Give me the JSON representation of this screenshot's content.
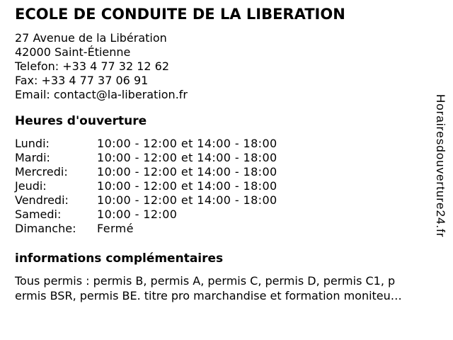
{
  "page": {
    "title": "ECOLE DE CONDUITE DE LA LIBERATION",
    "contact": {
      "address_line1": "27 Avenue de la Libération",
      "address_line2": "42000 Saint-Étienne",
      "phone": "Telefon: +33 4 77 32 12 62",
      "fax": "Fax: +33 4 77 37 06 91",
      "email": "Email: contact@la-liberation.fr"
    },
    "hours": {
      "heading": "Heures d'ouverture",
      "rows": [
        {
          "day": "Lundi:",
          "hours": "10:00 - 12:00 et 14:00 - 18:00"
        },
        {
          "day": "Mardi:",
          "hours": "10:00 - 12:00 et 14:00 - 18:00"
        },
        {
          "day": "Mercredi:",
          "hours": "10:00 - 12:00 et 14:00 - 18:00"
        },
        {
          "day": "Jeudi:",
          "hours": "10:00 - 12:00 et 14:00 - 18:00"
        },
        {
          "day": "Vendredi:",
          "hours": "10:00 - 12:00 et 14:00 - 18:00"
        },
        {
          "day": "Samedi:",
          "hours": "10:00 - 12:00"
        },
        {
          "day": "Dimanche:",
          "hours": "Fermé"
        }
      ]
    },
    "info": {
      "heading": "informations complémentaires",
      "lines": [
        "Tous permis : permis B, permis A, permis C, permis D, permis C1, p",
        "ermis BSR, permis BE. titre pro marchandise et formation moniteu…"
      ]
    },
    "watermark": "Horairesdouverture24.fr",
    "colors": {
      "background": "#ffffff",
      "text": "#000000"
    }
  }
}
